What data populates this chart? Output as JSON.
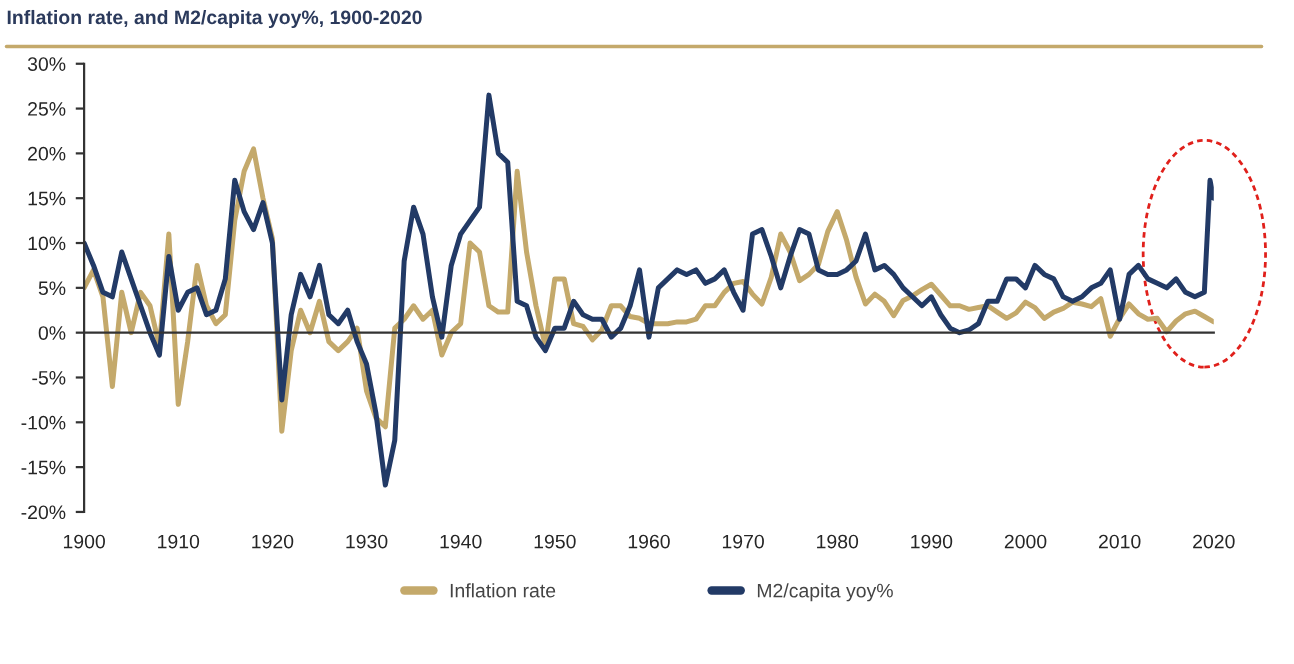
{
  "chart_data": {
    "type": "line",
    "title": "Inflation rate, and M2/capita yoy%, 1900-2020",
    "x": [
      1900,
      1901,
      1902,
      1903,
      1904,
      1905,
      1906,
      1907,
      1908,
      1909,
      1910,
      1911,
      1912,
      1913,
      1914,
      1915,
      1916,
      1917,
      1918,
      1919,
      1920,
      1921,
      1922,
      1923,
      1924,
      1925,
      1926,
      1927,
      1928,
      1929,
      1930,
      1931,
      1932,
      1933,
      1934,
      1935,
      1936,
      1937,
      1938,
      1939,
      1940,
      1941,
      1942,
      1943,
      1944,
      1945,
      1946,
      1947,
      1948,
      1949,
      1950,
      1951,
      1952,
      1953,
      1954,
      1955,
      1956,
      1957,
      1958,
      1959,
      1960,
      1961,
      1962,
      1963,
      1964,
      1965,
      1966,
      1967,
      1968,
      1969,
      1970,
      1971,
      1972,
      1973,
      1974,
      1975,
      1976,
      1977,
      1978,
      1979,
      1980,
      1981,
      1982,
      1983,
      1984,
      1985,
      1986,
      1987,
      1988,
      1989,
      1990,
      1991,
      1992,
      1993,
      1994,
      1995,
      1996,
      1997,
      1998,
      1999,
      2000,
      2001,
      2002,
      2003,
      2004,
      2005,
      2006,
      2007,
      2008,
      2009,
      2010,
      2011,
      2012,
      2013,
      2014,
      2015,
      2016,
      2017,
      2018,
      2019,
      2020
    ],
    "series": [
      {
        "name": "Inflation rate",
        "color": "#c4a96b",
        "values": [
          5,
          7,
          4,
          -6,
          4.5,
          0,
          4.5,
          3,
          -1.5,
          11,
          -8,
          -1,
          7.5,
          3,
          1,
          2,
          12.5,
          18,
          20.5,
          15,
          10.5,
          -11,
          -2,
          2.5,
          0,
          3.5,
          -1,
          -2,
          -1,
          0.5,
          -6.5,
          -9.5,
          -10.5,
          0.5,
          1.5,
          3,
          1.5,
          2.5,
          -2.5,
          0,
          1,
          10,
          9,
          3,
          2.3,
          2.3,
          18,
          9,
          3,
          -1.5,
          6,
          6,
          1,
          0.7,
          -0.8,
          0.3,
          3,
          3,
          1.8,
          1.6,
          1,
          1,
          1,
          1.2,
          1.2,
          1.5,
          3,
          3,
          4.5,
          5.5,
          5.7,
          4.3,
          3.2,
          6.2,
          11,
          9,
          5.8,
          6.5,
          7.6,
          11.3,
          13.5,
          10.3,
          6.2,
          3.2,
          4.3,
          3.5,
          1.9,
          3.6,
          4.1,
          4.8,
          5.4,
          4.2,
          3,
          3,
          2.6,
          2.8,
          3,
          2.3,
          1.6,
          2.2,
          3.4,
          2.8,
          1.6,
          2.3,
          2.7,
          3.4,
          3.2,
          2.9,
          3.8,
          -0.4,
          1.6,
          3.2,
          2.1,
          1.5,
          1.6,
          0.1,
          1.3,
          2.1,
          2.4,
          1.8,
          1.2
        ]
      },
      {
        "name": "M2/capita yoy%",
        "color": "#223a66",
        "x": [
          1900,
          1901,
          1902,
          1903,
          1904,
          1905,
          1906,
          1907,
          1908,
          1909,
          1910,
          1911,
          1912,
          1913,
          1914,
          1915,
          1916,
          1917,
          1918,
          1919,
          1920,
          1921,
          1922,
          1923,
          1924,
          1925,
          1926,
          1927,
          1928,
          1929,
          1930,
          1931,
          1932,
          1933,
          1934,
          1935,
          1936,
          1937,
          1938,
          1939,
          1940,
          1941,
          1942,
          1943,
          1944,
          1945,
          1946,
          1947,
          1948,
          1949,
          1950,
          1951,
          1952,
          1953,
          1954,
          1955,
          1956,
          1957,
          1958,
          1959,
          1960,
          1961,
          1962,
          1963,
          1964,
          1965,
          1966,
          1967,
          1968,
          1969,
          1970,
          1971,
          1972,
          1973,
          1974,
          1975,
          1976,
          1977,
          1978,
          1979,
          1980,
          1981,
          1982,
          1983,
          1984,
          1985,
          1986,
          1987,
          1988,
          1989,
          1990,
          1991,
          1992,
          1993,
          1994,
          1995,
          1996,
          1997,
          1998,
          1999,
          2000,
          2001,
          2002,
          2003,
          2004,
          2005,
          2006,
          2007,
          2008,
          2009,
          2010,
          2011,
          2012,
          2013,
          2014,
          2015,
          2016,
          2017,
          2018,
          2019,
          2019.6,
          2020
        ],
        "values": [
          10,
          7.5,
          4.5,
          4,
          9,
          6,
          3,
          0,
          -2.5,
          8.5,
          2.5,
          4.5,
          5,
          2,
          2.5,
          6,
          17,
          13.5,
          11.5,
          14.5,
          10,
          -7.5,
          2,
          6.5,
          4,
          7.5,
          2,
          1,
          2.5,
          -1,
          -3.5,
          -9,
          -17,
          -12,
          8,
          14,
          11,
          4,
          -0.5,
          7.5,
          11,
          12.5,
          14,
          26.5,
          20,
          19,
          3.5,
          3,
          -0.5,
          -2,
          0.5,
          0.5,
          3.5,
          2,
          1.5,
          1.5,
          -0.5,
          0.5,
          3,
          7,
          -0.5,
          5,
          6,
          7,
          6.5,
          7,
          5.5,
          6,
          7,
          4.5,
          2.5,
          11,
          11.5,
          8.5,
          5,
          8.5,
          11.5,
          11,
          7,
          6.5,
          6.5,
          7,
          8,
          11,
          7,
          7.5,
          6.5,
          5,
          4,
          3,
          4,
          2,
          0.5,
          0,
          0.3,
          1,
          3.5,
          3.5,
          6,
          6,
          5,
          7.5,
          6.5,
          6,
          4,
          3.5,
          4,
          5,
          5.5,
          7,
          1.5,
          6.5,
          7.5,
          6,
          5.5,
          5,
          6,
          4.5,
          4,
          4.5,
          17,
          15
        ]
      }
    ],
    "xlim": [
      1900,
      2020
    ],
    "xticks": [
      1900,
      1910,
      1920,
      1930,
      1940,
      1950,
      1960,
      1970,
      1980,
      1990,
      2000,
      2010,
      2020
    ],
    "ylim": [
      -20,
      30
    ],
    "yticks": [
      {
        "value": -20,
        "label": "-20%"
      },
      {
        "value": -15,
        "label": "-15%"
      },
      {
        "value": -10,
        "label": "-10%"
      },
      {
        "value": -5,
        "label": "-5%"
      },
      {
        "value": 0,
        "label": "0%"
      },
      {
        "value": 5,
        "label": "5%"
      },
      {
        "value": 10,
        "label": "10%"
      },
      {
        "value": 15,
        "label": "15%"
      },
      {
        "value": 20,
        "label": "20%"
      },
      {
        "value": 25,
        "label": "25%"
      },
      {
        "value": 30,
        "label": "30%"
      }
    ],
    "legend": "bottom",
    "line_style": "solid"
  }
}
